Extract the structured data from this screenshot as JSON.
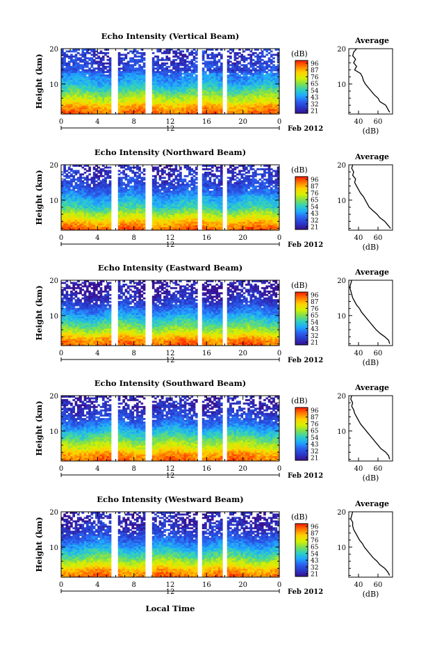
{
  "colorbar": {
    "unit_label": "(dB)",
    "tick_labels": [
      "96",
      "87",
      "76",
      "65",
      "54",
      "43",
      "32",
      "21"
    ],
    "stops": [
      "#ff1a00",
      "#ff7a00",
      "#ffd000",
      "#d8f000",
      "#7ee050",
      "#30d0c0",
      "#20a8ff",
      "#2a60ee",
      "#2838c8",
      "#3a1090"
    ]
  },
  "x_axis": {
    "tick_labels": [
      "0",
      "4",
      "8",
      "12",
      "16",
      "20",
      "0"
    ],
    "date_label": "12",
    "month_label": "Feb 2012",
    "title": "Local Time"
  },
  "y_axis": {
    "title": "Height (km)",
    "tick_labels": [
      "20",
      "10"
    ]
  },
  "average_panel": {
    "title": "Average",
    "xlabel": "(dB)",
    "x_tick_labels": [
      "40",
      "60"
    ],
    "y_tick_labels": [
      "20",
      "10"
    ]
  },
  "chart_data": [
    {
      "type": "heatmap",
      "title": "Echo Intensity (Vertical Beam)",
      "xlabel": "",
      "ylabel": "Height (km)",
      "xlim": [
        0,
        24
      ],
      "ylim": [
        1.5,
        20
      ],
      "zlim": [
        21,
        96
      ],
      "gaps_hours": [
        [
          5.6,
          6.2
        ],
        [
          9.3,
          9.9
        ],
        [
          15.0,
          15.5
        ],
        [
          17.8,
          18.3
        ]
      ],
      "profile": {
        "xlim": [
          30,
          75
        ],
        "heights": [
          2,
          3,
          4,
          5,
          6,
          7,
          8,
          9,
          10,
          11,
          12,
          13,
          14,
          15,
          16,
          17,
          18,
          19,
          20
        ],
        "values": [
          72,
          70,
          68,
          62,
          60,
          56,
          53,
          50,
          47,
          45,
          44,
          42,
          36,
          38,
          35,
          37,
          34,
          35,
          38
        ]
      }
    },
    {
      "type": "heatmap",
      "title": "Echo Intensity (Northward Beam)",
      "xlabel": "",
      "ylabel": "Height (km)",
      "xlim": [
        0,
        24
      ],
      "ylim": [
        1.5,
        20
      ],
      "zlim": [
        21,
        96
      ],
      "gaps_hours": [
        [
          5.6,
          6.2
        ],
        [
          9.3,
          9.9
        ],
        [
          15.0,
          15.5
        ],
        [
          17.8,
          18.3
        ]
      ],
      "profile": {
        "xlim": [
          30,
          75
        ],
        "heights": [
          2,
          3,
          4,
          5,
          6,
          7,
          8,
          9,
          10,
          11,
          12,
          13,
          14,
          15,
          16,
          17,
          18,
          19,
          20
        ],
        "values": [
          73,
          70,
          67,
          62,
          59,
          55,
          51,
          49,
          47,
          45,
          42,
          40,
          38,
          36,
          37,
          34,
          35,
          33,
          34
        ]
      }
    },
    {
      "type": "heatmap",
      "title": "Echo Intensity (Eastward Beam)",
      "xlabel": "",
      "ylabel": "Height (km)",
      "xlim": [
        0,
        24
      ],
      "ylim": [
        1.5,
        20
      ],
      "zlim": [
        21,
        96
      ],
      "gaps_hours": [
        [
          5.6,
          6.2
        ],
        [
          9.3,
          9.9
        ],
        [
          15.0,
          15.5
        ],
        [
          17.8,
          18.3
        ]
      ],
      "profile": {
        "xlim": [
          30,
          75
        ],
        "heights": [
          2,
          3,
          4,
          5,
          6,
          7,
          8,
          9,
          10,
          11,
          12,
          13,
          14,
          15,
          16,
          17,
          18,
          19,
          20
        ],
        "values": [
          72,
          71,
          67,
          62,
          58,
          55,
          52,
          49,
          46,
          43,
          41,
          38,
          36,
          34,
          33,
          32,
          31,
          32,
          33
        ]
      }
    },
    {
      "type": "heatmap",
      "title": "Echo Intensity (Southward Beam)",
      "xlabel": "",
      "ylabel": "Height (km)",
      "xlim": [
        0,
        24
      ],
      "ylim": [
        1.5,
        20
      ],
      "zlim": [
        21,
        96
      ],
      "gaps_hours": [
        [
          5.6,
          6.2
        ],
        [
          9.3,
          9.9
        ],
        [
          15.0,
          15.5
        ],
        [
          17.8,
          18.3
        ]
      ],
      "profile": {
        "xlim": [
          30,
          75
        ],
        "heights": [
          2,
          3,
          4,
          5,
          6,
          7,
          8,
          9,
          10,
          11,
          12,
          13,
          14,
          15,
          16,
          17,
          18,
          19,
          20
        ],
        "values": [
          72,
          71,
          68,
          63,
          60,
          57,
          54,
          51,
          48,
          45,
          42,
          40,
          38,
          36,
          35,
          33,
          34,
          32,
          33
        ]
      }
    },
    {
      "type": "heatmap",
      "title": "Echo Intensity (Westward Beam)",
      "xlabel": "Local Time",
      "ylabel": "Height (km)",
      "xlim": [
        0,
        24
      ],
      "ylim": [
        1.5,
        20
      ],
      "zlim": [
        21,
        96
      ],
      "gaps_hours": [
        [
          5.6,
          6.2
        ],
        [
          9.3,
          9.9
        ],
        [
          15.0,
          15.5
        ],
        [
          17.8,
          18.3
        ]
      ],
      "profile": {
        "xlim": [
          30,
          75
        ],
        "heights": [
          2,
          3,
          4,
          5,
          6,
          7,
          8,
          9,
          10,
          11,
          12,
          13,
          14,
          15,
          16,
          17,
          18,
          19,
          20
        ],
        "values": [
          72,
          70,
          67,
          62,
          59,
          55,
          52,
          49,
          46,
          44,
          41,
          39,
          37,
          35,
          34,
          34,
          32,
          33,
          34
        ]
      }
    }
  ]
}
